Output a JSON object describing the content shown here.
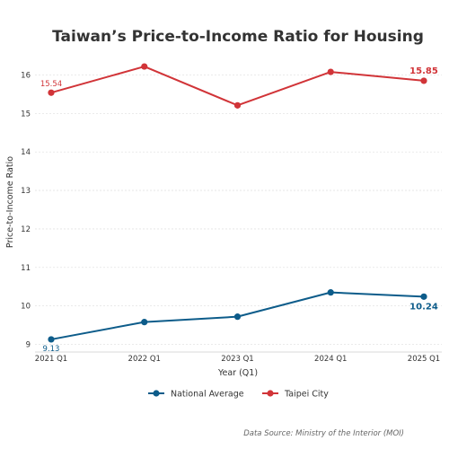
{
  "chart_data": {
    "type": "line",
    "title": "Taiwan’s Price-to-Income Ratio for Housing",
    "xlabel": "Year (Q1)",
    "ylabel": "Price-to-Income Ratio",
    "categories": [
      "2021 Q1",
      "2022 Q1",
      "2023 Q1",
      "2024 Q1",
      "2025 Q1"
    ],
    "yticks": [
      9,
      10,
      11,
      12,
      13,
      14,
      15,
      16
    ],
    "ylim": [
      8.8,
      16.6
    ],
    "grid": "horizontal-dashed",
    "legend_position": "bottom-center",
    "series": [
      {
        "name": "National Average",
        "color": "#0d5c8a",
        "values": [
          9.13,
          9.58,
          9.72,
          10.35,
          10.24
        ],
        "labels": [
          {
            "index": 0,
            "text": "9.13",
            "emphasis": false
          },
          {
            "index": 4,
            "text": "10.24",
            "emphasis": true
          }
        ]
      },
      {
        "name": "Taipei City",
        "color": "#d13438",
        "values": [
          15.54,
          16.22,
          15.21,
          16.08,
          15.85
        ],
        "labels": [
          {
            "index": 0,
            "text": "15.54",
            "emphasis": false
          },
          {
            "index": 4,
            "text": "15.85",
            "emphasis": true
          }
        ]
      }
    ],
    "source_note": "Data Source: Ministry of the Interior (MOI)"
  }
}
